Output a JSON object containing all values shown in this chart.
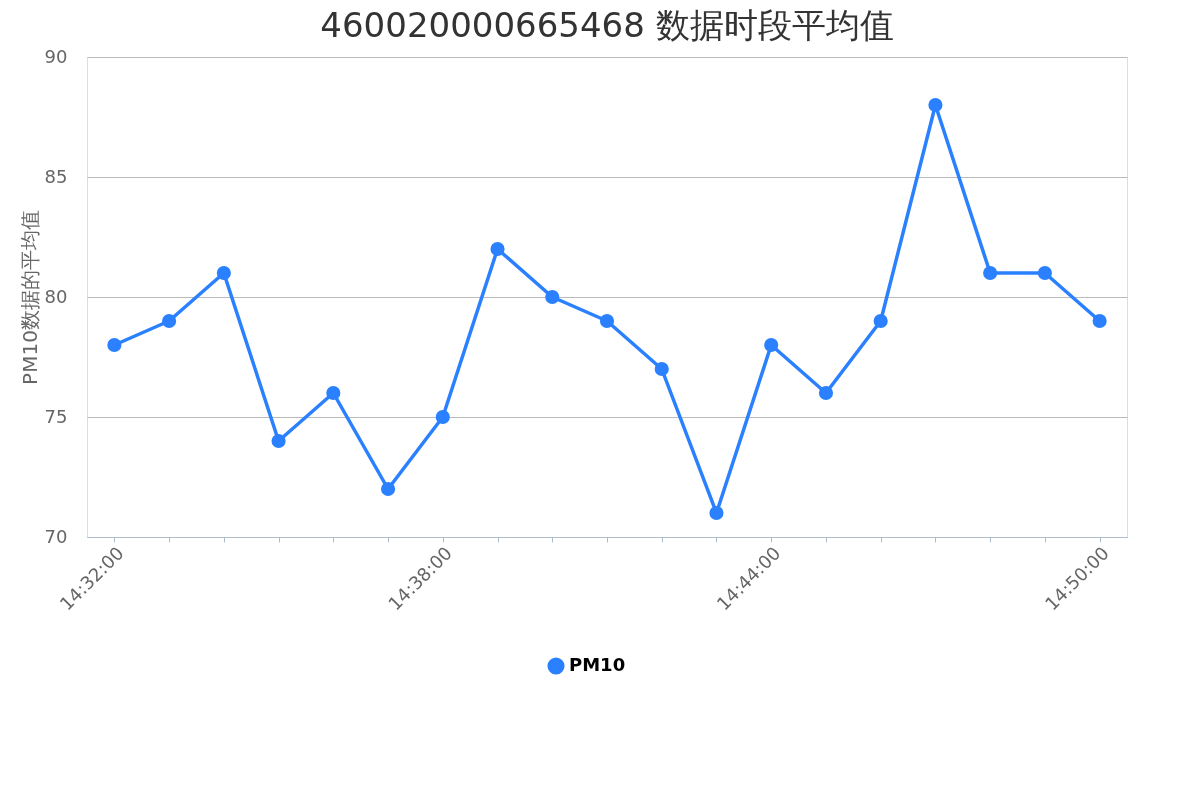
{
  "chart_data": {
    "type": "line",
    "title": "460020000665468 数据时段平均值",
    "ylabel": "PM10数据的平均值",
    "categories": [
      "14:32:00",
      null,
      null,
      null,
      null,
      null,
      "14:38:00",
      null,
      null,
      null,
      null,
      null,
      "14:44:00",
      null,
      null,
      null,
      null,
      null,
      "14:50:00"
    ],
    "series": [
      {
        "name": "PM10",
        "color": "#2a80ff",
        "values": [
          78,
          79,
          81,
          74,
          76,
          72,
          75,
          82,
          80,
          79,
          77,
          71,
          78,
          76,
          79,
          88,
          81,
          81,
          79
        ]
      }
    ],
    "ylim": [
      70,
      90
    ],
    "yticks": [
      70,
      75,
      80,
      85,
      90
    ],
    "grid": "y",
    "legend": "bottom",
    "marker": "circle",
    "line_style": "solid"
  }
}
